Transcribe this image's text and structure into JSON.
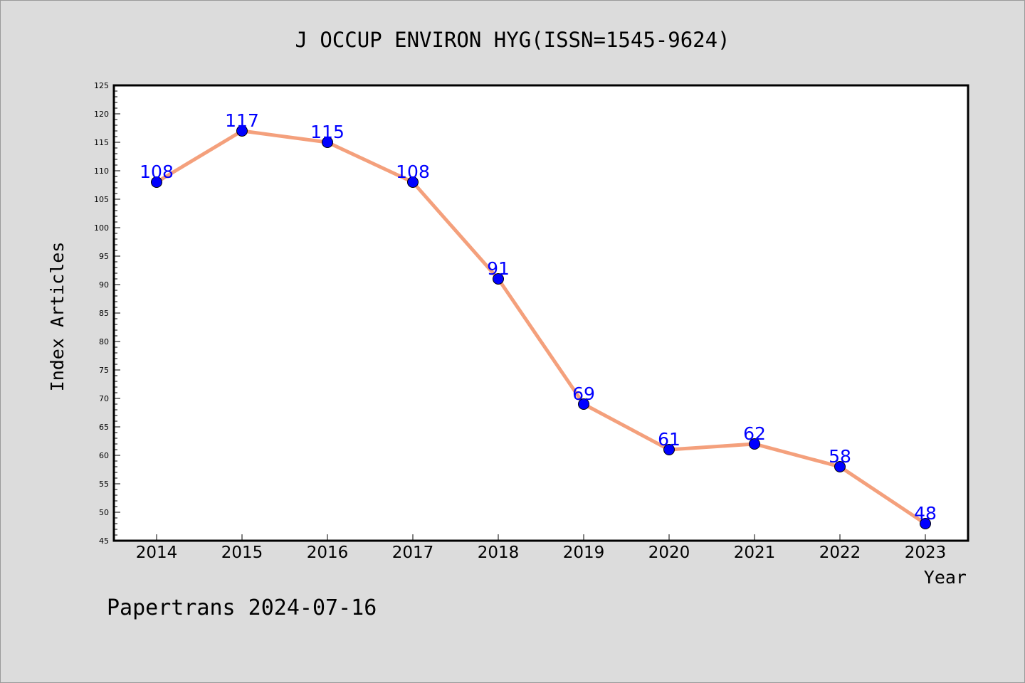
{
  "chart_data": {
    "type": "line",
    "title": "J OCCUP ENVIRON HYG(ISSN=1545-9624)",
    "xlabel": "Year",
    "ylabel": "Index Articles",
    "categories": [
      "2014",
      "2015",
      "2016",
      "2017",
      "2018",
      "2019",
      "2020",
      "2021",
      "2022",
      "2023"
    ],
    "series": [
      {
        "values": [
          108,
          117,
          115,
          108,
          91,
          69,
          61,
          62,
          58,
          48
        ]
      }
    ],
    "ylim": [
      45,
      125
    ],
    "yticks": [
      45,
      50,
      55,
      60,
      65,
      70,
      75,
      80,
      85,
      90,
      95,
      100,
      105,
      110,
      115,
      120,
      125
    ],
    "grid": false,
    "data_labels": true,
    "colors": {
      "line": "#f4a07c",
      "marker": "#0000ff",
      "label": "#0000ff",
      "plot_background": "#ffffff",
      "page_background": "#dcdcdc"
    }
  },
  "footer": "Papertrans 2024-07-16"
}
